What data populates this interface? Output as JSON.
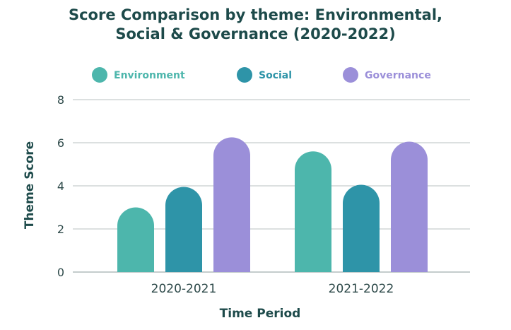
{
  "chart_data": {
    "type": "bar",
    "title_line1": "Score Comparison by theme: Environmental,",
    "title_line2": "Social & Governance (2020-2022)",
    "xlabel": "Time Period",
    "ylabel": "Theme Score",
    "categories": [
      "2020-2021",
      "2021-2022"
    ],
    "series": [
      {
        "name": "Environment",
        "color": "#4db6ac",
        "values": [
          3.0,
          5.6
        ]
      },
      {
        "name": "Social",
        "color": "#2e94a8",
        "values": [
          3.95,
          4.05
        ]
      },
      {
        "name": "Governance",
        "color": "#9b8fd9",
        "values": [
          6.25,
          6.05
        ]
      }
    ],
    "ylim": [
      0,
      8
    ],
    "yticks": [
      0,
      2,
      4,
      6,
      8
    ],
    "grid": true,
    "legend_position": "top"
  }
}
